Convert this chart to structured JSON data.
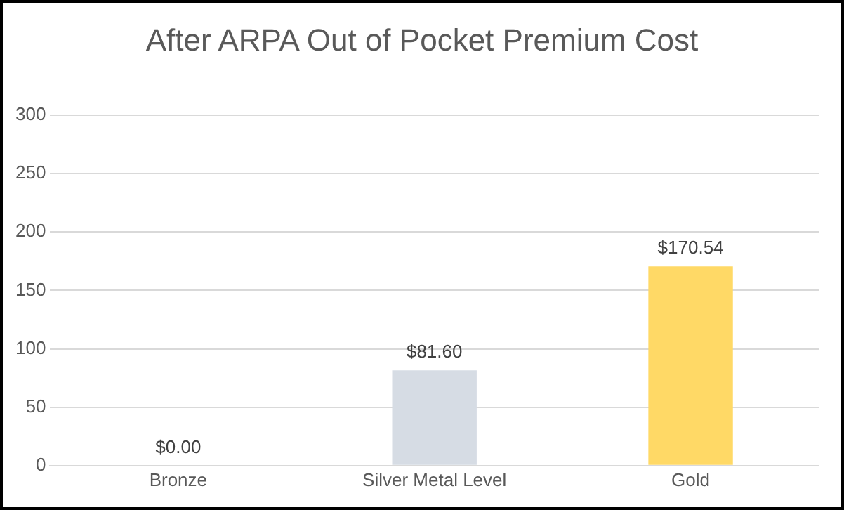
{
  "chart_data": {
    "type": "bar",
    "title": "After ARPA Out of Pocket Premium Cost",
    "categories": [
      "Bronze",
      "Silver Metal Level",
      "Gold"
    ],
    "values": [
      0,
      81.6,
      170.54
    ],
    "colors": [
      "#f4b183",
      "#d6dce4",
      "#ffd966"
    ],
    "value_labels": [
      "$0.00",
      "$81.60",
      "$170.54"
    ],
    "ylim": [
      0,
      300
    ],
    "yticks": [
      0,
      50,
      100,
      150,
      200,
      250,
      300
    ],
    "grid": "y"
  }
}
